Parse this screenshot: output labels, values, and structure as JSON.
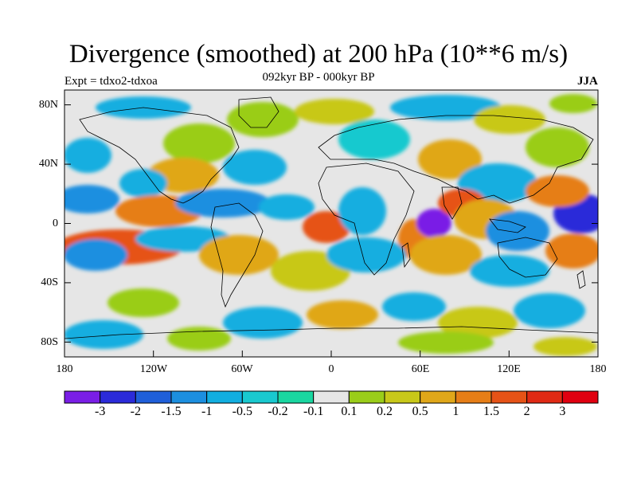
{
  "header": {
    "title": "Divergence (smoothed) at 200 hPa (10**6 m/s)",
    "subtitle": "092kyr BP - 000kyr BP",
    "experiment": "Expt = tdxo2-tdxoa",
    "season": "JJA"
  },
  "axes": {
    "y_ticks": [
      "80N",
      "40N",
      "0",
      "40S",
      "80S"
    ],
    "x_ticks": [
      "180",
      "120W",
      "60W",
      "0",
      "60E",
      "120E",
      "180"
    ]
  },
  "colorbar": {
    "labels": [
      "-3",
      "-2",
      "-1.5",
      "-1",
      "-0.5",
      "-0.2",
      "-0.1",
      "0.1",
      "0.2",
      "0.5",
      "1",
      "1.5",
      "2",
      "3"
    ],
    "colors": [
      "#7a1ee6",
      "#2b2bd9",
      "#1f5fd9",
      "#1c8fe0",
      "#12aee0",
      "#19c9cf",
      "#19d6a0",
      "#e6e6e6",
      "#9acd19",
      "#c8c819",
      "#e0a719",
      "#e67e17",
      "#e65317",
      "#e02a14",
      "#e00010"
    ]
  },
  "map": {
    "background_color": "#e6e6e6",
    "projection": "cylindrical equidistant",
    "coastline_color": "#000000"
  }
}
